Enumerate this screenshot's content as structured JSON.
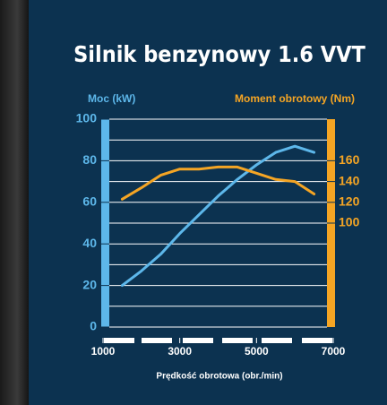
{
  "chart_data": {
    "type": "line",
    "title": "Silnik benzynowy 1.6 VVT",
    "y_label": "Moc (kW)",
    "y2_label": "Moment obrotowy (Nm)",
    "x_label": "Prędkość obrotowa (obr./min)",
    "x": [
      1500,
      2000,
      2500,
      3000,
      3500,
      4000,
      4500,
      5000,
      5500,
      6000,
      6500
    ],
    "series": [
      {
        "name": "Moc (kW)",
        "color": "#5db7ea",
        "axis": "y",
        "values": [
          20,
          27,
          35,
          45,
          54,
          63,
          71,
          78,
          84,
          87,
          84
        ]
      },
      {
        "name": "Moment obrotowy (Nm)",
        "color": "#f5a524",
        "axis": "y2",
        "values": [
          123,
          134,
          146,
          152,
          152,
          154,
          154,
          148,
          142,
          140,
          128
        ]
      }
    ],
    "xlim": [
      1000,
      7000
    ],
    "xticks": [
      1000,
      3000,
      5000,
      7000
    ],
    "ylim": [
      0,
      100
    ],
    "yticks": [
      0,
      20,
      40,
      60,
      80,
      100
    ],
    "y2lim": [
      0,
      200
    ],
    "y2ticks": [
      100,
      120,
      140,
      160
    ],
    "grid_lines": [
      0,
      10,
      20,
      30,
      40,
      50,
      60,
      70,
      80,
      90,
      100
    ]
  }
}
